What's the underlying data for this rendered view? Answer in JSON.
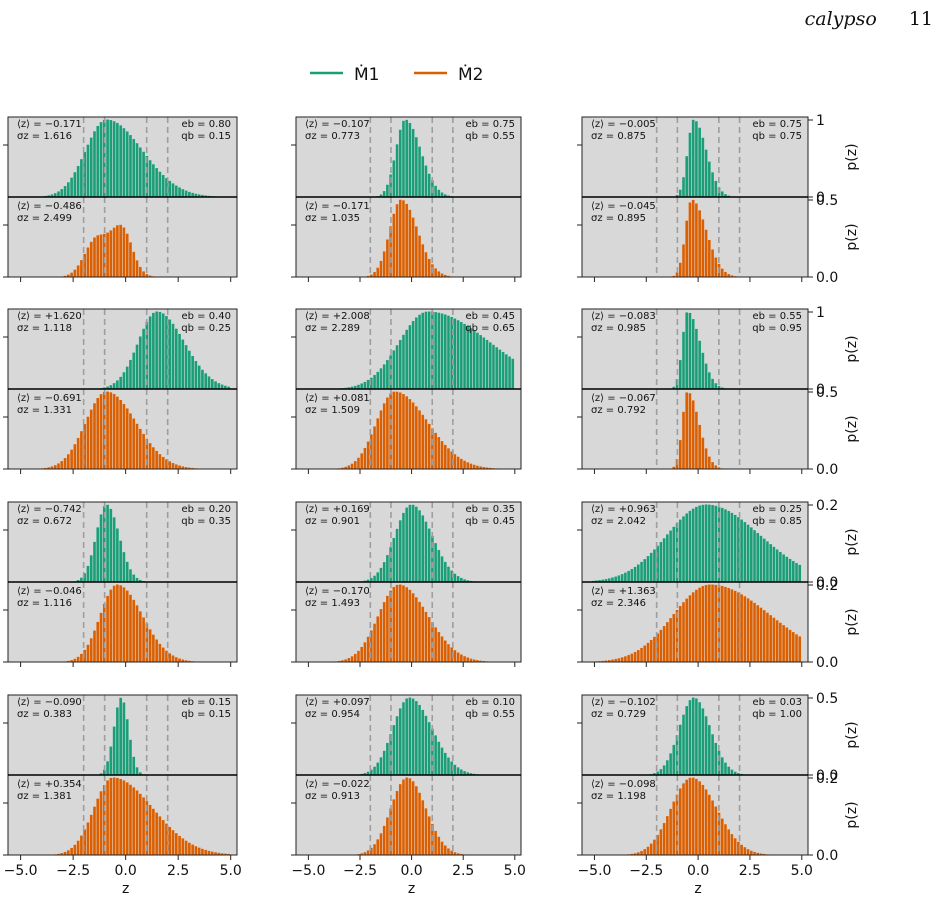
{
  "page_header": {
    "journal": "calypso",
    "page_number": "11"
  },
  "figure": {
    "legend": [
      {
        "label": "Ṁ1",
        "color": "#1b9e77"
      },
      {
        "label": "Ṁ2",
        "color": "#d95f02"
      }
    ],
    "colors": {
      "m1": "#1b9e77",
      "m2": "#d95f02",
      "panel_bg": "#d8d8d8",
      "vline": "#9e9e9e"
    },
    "x_axis": {
      "label": "z",
      "range": [
        -5.0,
        5.0
      ],
      "ticks": [
        "−5.0",
        "−2.5",
        "0.0",
        "2.5",
        "5.0"
      ]
    },
    "y_axis_label": "p(z)",
    "vertical_lines_at": [
      -2,
      -1,
      1,
      2
    ]
  },
  "chart_data": [
    {
      "type": "histogram",
      "row": 1,
      "col": 1,
      "eb": "0.80",
      "qb": "0.15",
      "top": {
        "series": "Ṁ1",
        "mean": "−0.171",
        "sigma": "1.616",
        "center": -0.9,
        "sl": 1.0,
        "sr": 1.7,
        "ylim": [
          0,
          1
        ],
        "yticks": [
          "0",
          "1"
        ]
      },
      "bottom": {
        "series": "Ṁ2",
        "mean": "−0.486",
        "sigma": "2.499",
        "center": -1.3,
        "sl": 0.6,
        "sr": 0.9,
        "bimodal": true,
        "ylim": [
          0,
          0.5
        ],
        "yticks": [
          "0.0",
          "0.5"
        ]
      }
    },
    {
      "type": "histogram",
      "row": 1,
      "col": 2,
      "eb": "0.75",
      "qb": "0.55",
      "top": {
        "series": "Ṁ1",
        "mean": "−0.107",
        "sigma": "0.773",
        "center": -0.3,
        "sl": 0.45,
        "sr": 0.75,
        "ylim": [
          0,
          1
        ],
        "yticks": [
          "0",
          "1"
        ]
      },
      "bottom": {
        "series": "Ṁ2",
        "mean": "−0.171",
        "sigma": "1.035",
        "center": -0.5,
        "sl": 0.55,
        "sr": 0.8,
        "ylim": [
          0,
          0.5
        ],
        "yticks": [
          "0.0",
          "0.5"
        ]
      }
    },
    {
      "type": "histogram",
      "row": 1,
      "col": 3,
      "eb": "0.75",
      "qb": "0.75",
      "top": {
        "series": "Ṁ1",
        "mean": "−0.005",
        "sigma": "0.875",
        "center": -0.2,
        "sl": 0.3,
        "sr": 0.6,
        "ylim": [
          0,
          1
        ],
        "yticks": [
          "0",
          "1"
        ]
      },
      "bottom": {
        "series": "Ṁ2",
        "mean": "−0.045",
        "sigma": "0.895",
        "center": -0.3,
        "sl": 0.3,
        "sr": 0.7,
        "ylim": [
          0,
          0.5
        ],
        "yticks": [
          "0.0",
          "0.5"
        ]
      }
    },
    {
      "type": "histogram",
      "row": 2,
      "col": 1,
      "eb": "0.40",
      "qb": "0.25",
      "top": {
        "series": "Ṁ1",
        "mean": "+1.620",
        "sigma": "1.118",
        "center": 1.5,
        "sl": 0.9,
        "sr": 1.3,
        "ylim": [
          0,
          1
        ],
        "yticks": [
          "0",
          "1"
        ]
      },
      "bottom": {
        "series": "Ṁ2",
        "mean": "−0.691",
        "sigma": "1.331",
        "center": -0.9,
        "sl": 1.0,
        "sr": 1.4,
        "ylim": [
          0,
          0.5
        ],
        "yticks": [
          "0.0",
          "0.5"
        ]
      }
    },
    {
      "type": "histogram",
      "row": 2,
      "col": 2,
      "eb": "0.45",
      "qb": "0.65",
      "top": {
        "series": "Ṁ1",
        "mean": "+2.008",
        "sigma": "2.289",
        "center": 0.8,
        "sl": 1.4,
        "sr": 3.0,
        "ylim": [
          0,
          1
        ],
        "yticks": [
          "0",
          "1"
        ]
      },
      "bottom": {
        "series": "Ṁ2",
        "mean": "+0.081",
        "sigma": "1.509",
        "center": -0.8,
        "sl": 0.9,
        "sr": 1.6,
        "ylim": [
          0,
          0.5
        ],
        "yticks": [
          "0.0",
          "0.5"
        ]
      }
    },
    {
      "type": "histogram",
      "row": 2,
      "col": 3,
      "eb": "0.55",
      "qb": "0.95",
      "top": {
        "series": "Ṁ1",
        "mean": "−0.083",
        "sigma": "0.985",
        "center": -0.5,
        "sl": 0.25,
        "sr": 0.6,
        "ylim": [
          0,
          1
        ],
        "yticks": [
          "0",
          "1"
        ]
      },
      "bottom": {
        "series": "Ṁ2",
        "mean": "−0.067",
        "sigma": "0.792",
        "center": -0.5,
        "sl": 0.25,
        "sr": 0.55,
        "ylim": [
          0,
          0.5
        ],
        "yticks": [
          "0.0",
          "0.5"
        ]
      }
    },
    {
      "type": "histogram",
      "row": 3,
      "col": 1,
      "eb": "0.20",
      "qb": "0.35",
      "top": {
        "series": "Ṁ1",
        "mean": "−0.742",
        "sigma": "0.672",
        "center": -0.9,
        "sl": 0.5,
        "sr": 0.6,
        "ylim": [
          0,
          1
        ],
        "yticks": [
          "0",
          "1"
        ]
      },
      "bottom": {
        "series": "Ṁ2",
        "mean": "−0.046",
        "sigma": "1.116",
        "center": -0.4,
        "sl": 0.8,
        "sr": 1.2,
        "ylim": [
          0,
          0.5
        ],
        "yticks": [
          "0.0",
          "0.5"
        ]
      }
    },
    {
      "type": "histogram",
      "row": 3,
      "col": 2,
      "eb": "0.35",
      "qb": "0.45",
      "top": {
        "series": "Ṁ1",
        "mean": "+0.169",
        "sigma": "0.901",
        "center": 0.0,
        "sl": 0.8,
        "sr": 1.0,
        "ylim": [
          0,
          1
        ],
        "yticks": [
          "0",
          "1"
        ]
      },
      "bottom": {
        "series": "Ṁ2",
        "mean": "−0.170",
        "sigma": "1.493",
        "center": -0.6,
        "sl": 1.0,
        "sr": 1.4,
        "ylim": [
          0,
          0.5
        ],
        "yticks": [
          "0.0",
          "0.5"
        ]
      }
    },
    {
      "type": "histogram",
      "row": 3,
      "col": 3,
      "eb": "0.25",
      "qb": "0.85",
      "top": {
        "series": "Ṁ1",
        "mean": "+0.963",
        "sigma": "2.042",
        "center": 0.4,
        "sl": 1.9,
        "sr": 2.6,
        "ylim": [
          0,
          0.2
        ],
        "yticks": [
          "0.0",
          "0.2"
        ]
      },
      "bottom": {
        "series": "Ṁ2",
        "mean": "+1.363",
        "sigma": "2.346",
        "center": 0.6,
        "sl": 1.8,
        "sr": 2.9,
        "ylim": [
          0,
          0.2
        ],
        "yticks": [
          "0.0",
          "0.2"
        ]
      }
    },
    {
      "type": "histogram",
      "row": 4,
      "col": 1,
      "eb": "0.15",
      "qb": "0.15",
      "top": {
        "series": "Ṁ1",
        "mean": "−0.090",
        "sigma": "0.383",
        "center": -0.2,
        "sl": 0.35,
        "sr": 0.35,
        "ylim": [
          0,
          1
        ],
        "yticks": [
          "0",
          "1"
        ]
      },
      "bottom": {
        "series": "Ṁ2",
        "mean": "+0.354",
        "sigma": "1.381",
        "center": -0.6,
        "sl": 0.9,
        "sr": 1.9,
        "ylim": [
          0,
          0.5
        ],
        "yticks": [
          "0.0",
          "0.5"
        ]
      }
    },
    {
      "type": "histogram",
      "row": 4,
      "col": 2,
      "eb": "0.10",
      "qb": "0.55",
      "top": {
        "series": "Ṁ1",
        "mean": "+0.097",
        "sigma": "0.954",
        "center": -0.1,
        "sl": 0.8,
        "sr": 1.1,
        "ylim": [
          0,
          0.5
        ],
        "yticks": [
          "0.0",
          "0.5"
        ]
      },
      "bottom": {
        "series": "Ṁ2",
        "mean": "−0.022",
        "sigma": "0.913",
        "center": -0.2,
        "sl": 0.8,
        "sr": 0.9,
        "ylim": [
          0,
          0.2
        ],
        "yticks": [
          "0.0",
          "0.2"
        ]
      }
    },
    {
      "type": "histogram",
      "row": 4,
      "col": 3,
      "eb": "0.03",
      "qb": "1.00",
      "top": {
        "series": "Ṁ1",
        "mean": "−0.102",
        "sigma": "0.729",
        "center": -0.2,
        "sl": 0.7,
        "sr": 0.8,
        "ylim": [
          0,
          0.5
        ],
        "yticks": [
          "0.0",
          "0.5"
        ]
      },
      "bottom": {
        "series": "Ṁ2",
        "mean": "−0.098",
        "sigma": "1.198",
        "center": -0.3,
        "sl": 1.0,
        "sr": 1.2,
        "ylim": [
          0,
          0.2
        ],
        "yticks": [
          "0.0",
          "0.2"
        ]
      }
    }
  ]
}
